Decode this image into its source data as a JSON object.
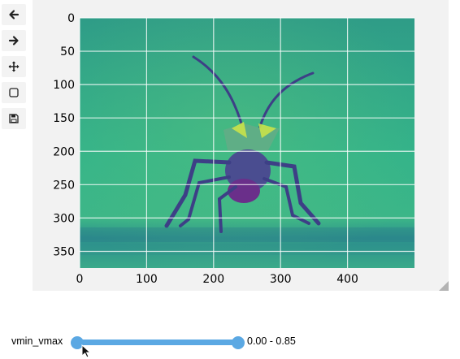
{
  "toolbar": {
    "items": [
      {
        "name": "back",
        "icon": "arrow-left-icon"
      },
      {
        "name": "forward",
        "icon": "arrow-right-icon"
      },
      {
        "name": "pan",
        "icon": "move-icon"
      },
      {
        "name": "zoom",
        "icon": "square-icon"
      },
      {
        "name": "save",
        "icon": "floppy-disk-icon"
      }
    ]
  },
  "plot": {
    "x_ticks": [
      "0",
      "100",
      "200",
      "300",
      "400"
    ],
    "y_ticks": [
      "0",
      "50",
      "100",
      "150",
      "200",
      "250",
      "300",
      "350"
    ],
    "x_tick_values": [
      0,
      100,
      200,
      300,
      400
    ],
    "y_tick_values": [
      0,
      50,
      100,
      150,
      200,
      250,
      300,
      350
    ],
    "image_width": 500,
    "image_height": 375,
    "colormap": "viridis",
    "grid": true,
    "image_content": "insect-photo"
  },
  "slider": {
    "label": "vmin_vmax",
    "value_min": 0.0,
    "value_max": 0.85,
    "readout": "0.00 - 0.85",
    "accent_color": "#5ba8e3"
  },
  "colors": {
    "panel_bg": "#f2f2f2",
    "button_bg": "#f3f3f3",
    "grid": "#ffffff"
  }
}
